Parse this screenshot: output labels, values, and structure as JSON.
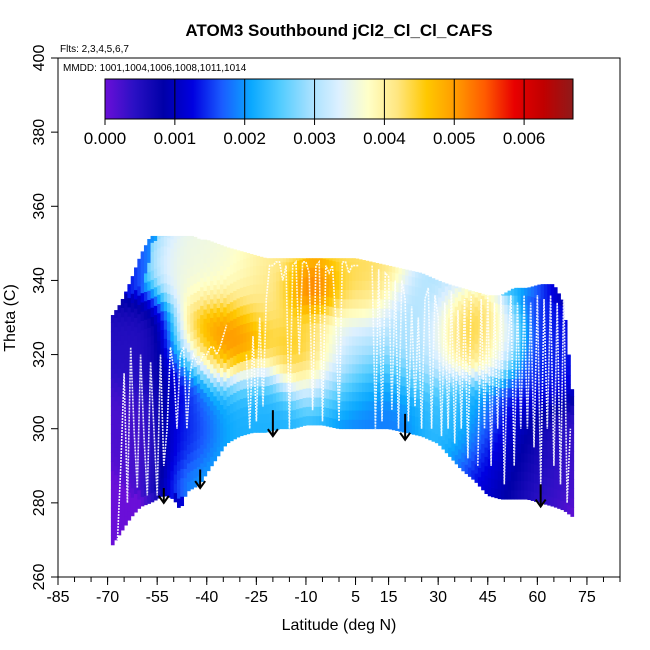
{
  "chart_data": {
    "type": "heatmap",
    "title": "ATOM3 Southbound jCl2_Cl_Cl_CAFS",
    "flights_note": "Flts: 2,3,4,5,6,7",
    "dates_note": "MMDD: 1001,1004,1006,1008,1011,1014",
    "xlabel": "Latitude (deg N)",
    "ylabel": "Theta (C)",
    "xlim": [
      -85,
      85
    ],
    "ylim": [
      260,
      400
    ],
    "x_ticks": [
      -85,
      -70,
      -55,
      -40,
      -25,
      -10,
      5,
      15,
      30,
      45,
      60,
      75
    ],
    "x_tick_labels": [
      "-85",
      "-70",
      "-55",
      "-40",
      "-25",
      "-10",
      "5",
      "15",
      "30",
      "45",
      "60",
      "75"
    ],
    "x_minor_step": 5,
    "y_ticks": [
      260,
      280,
      300,
      320,
      340,
      360,
      380,
      400
    ],
    "y_tick_labels": [
      "260",
      "280",
      "300",
      "320",
      "340",
      "360",
      "380",
      "400"
    ],
    "colorbar": {
      "range": [
        0,
        0.0067
      ],
      "ticks": [
        0.0,
        0.001,
        0.002,
        0.003,
        0.004,
        0.005,
        0.006
      ],
      "tick_labels": [
        "0.000",
        "0.001",
        "0.002",
        "0.003",
        "0.004",
        "0.005",
        "0.006"
      ],
      "colors": [
        "#6a0fd8",
        "#2a10c4",
        "#0000a8",
        "#0000e0",
        "#1a5cff",
        "#0aa8ff",
        "#52ccff",
        "#a4e0ff",
        "#ddf0ff",
        "#ffffc8",
        "#ffe680",
        "#ffc800",
        "#ff9a00",
        "#ff5a00",
        "#e80000",
        "#c00000",
        "#8f1a1a"
      ]
    },
    "boundary": {
      "lat": [
        -69,
        -66,
        -63,
        -60,
        -57,
        -55,
        -53,
        -50,
        -48,
        -46,
        -44,
        -42,
        -40,
        -37,
        -34,
        -30,
        -26,
        -22,
        -18,
        -14,
        -10,
        -5,
        0,
        5,
        10,
        15,
        20,
        25,
        30,
        33,
        37,
        41,
        45,
        49,
        53,
        57,
        61,
        65,
        68,
        71
      ],
      "theta_top": [
        330,
        334,
        340,
        347,
        352,
        352,
        352,
        352,
        352,
        352,
        352,
        351,
        351,
        350,
        349,
        348,
        347,
        346,
        346,
        346,
        346,
        346,
        346,
        346,
        345,
        344,
        343,
        342,
        340,
        339,
        338,
        337,
        336,
        336,
        338,
        338,
        339,
        339,
        334,
        306
      ],
      "theta_bottom": [
        268,
        272,
        276,
        279,
        280,
        281,
        282,
        281,
        278,
        283,
        284,
        285,
        288,
        292,
        296,
        298,
        299,
        299,
        300,
        300,
        301,
        301,
        300,
        300,
        300,
        300,
        299,
        298,
        296,
        293,
        289,
        286,
        282,
        281,
        281,
        281,
        280,
        279,
        278,
        276
      ]
    },
    "value_blobs": [
      {
        "lat": -62,
        "theta": 300,
        "value": 0.0002,
        "radius": 10
      },
      {
        "lat": -57,
        "theta": 320,
        "value": 0.0004,
        "radius": 10
      },
      {
        "lat": -48,
        "theta": 315,
        "value": 0.001,
        "radius": 8
      },
      {
        "lat": -45,
        "theta": 300,
        "value": 0.0012,
        "radius": 8
      },
      {
        "lat": -43,
        "theta": 322,
        "value": 0.0048,
        "radius": 7
      },
      {
        "lat": -35,
        "theta": 325,
        "value": 0.0055,
        "radius": 10
      },
      {
        "lat": -37,
        "theta": 342,
        "value": 0.0036,
        "radius": 12
      },
      {
        "lat": -32,
        "theta": 300,
        "value": 0.0022,
        "radius": 14
      },
      {
        "lat": -20,
        "theta": 340,
        "value": 0.0042,
        "radius": 12
      },
      {
        "lat": -10,
        "theta": 322,
        "value": 0.005,
        "radius": 8
      },
      {
        "lat": -8,
        "theta": 338,
        "value": 0.0058,
        "radius": 7
      },
      {
        "lat": 0,
        "theta": 320,
        "value": 0.0032,
        "radius": 12
      },
      {
        "lat": 5,
        "theta": 340,
        "value": 0.0044,
        "radius": 10
      },
      {
        "lat": 10,
        "theta": 306,
        "value": 0.0018,
        "radius": 12
      },
      {
        "lat": 25,
        "theta": 325,
        "value": 0.003,
        "radius": 12
      },
      {
        "lat": 38,
        "theta": 325,
        "value": 0.0048,
        "radius": 8
      },
      {
        "lat": 36,
        "theta": 302,
        "value": 0.0024,
        "radius": 10
      },
      {
        "lat": 48,
        "theta": 322,
        "value": 0.004,
        "radius": 7
      },
      {
        "lat": 50,
        "theta": 295,
        "value": 0.0012,
        "radius": 12
      },
      {
        "lat": 60,
        "theta": 318,
        "value": 0.0014,
        "radius": 10
      },
      {
        "lat": 63,
        "theta": 290,
        "value": 0.0003,
        "radius": 12
      }
    ],
    "flight_tracks": [
      {
        "lat": [
          -67,
          -66,
          -65,
          -64,
          -63,
          -62,
          -61,
          -60,
          -59,
          -58,
          -57,
          -56,
          -55,
          -54,
          -53,
          -52,
          -51,
          -50,
          -49,
          -48,
          -47,
          -46,
          -45,
          -44,
          -43,
          -42,
          -41,
          -40,
          -39,
          -38,
          -37,
          -36,
          -35,
          -34
        ],
        "theta": [
          270,
          290,
          315,
          280,
          322,
          300,
          284,
          320,
          298,
          282,
          318,
          300,
          282,
          320,
          290,
          300,
          322,
          316,
          300,
          320,
          322,
          300,
          315,
          320,
          318,
          318,
          320,
          320,
          322,
          322,
          320,
          322,
          325,
          328
        ]
      },
      {
        "lat": [
          -28,
          -27,
          -26,
          -25,
          -24,
          -23,
          -22,
          -21,
          -20,
          -19,
          -18,
          -17,
          -16,
          -15,
          -14,
          -13,
          -12,
          -11,
          -10,
          -9,
          -8,
          -7,
          -6,
          -5,
          -4,
          -3,
          -2,
          -1,
          0,
          1,
          2,
          3,
          4,
          5,
          6
        ],
        "theta": [
          320,
          300,
          325,
          302,
          330,
          306,
          335,
          344,
          344,
          345,
          345,
          340,
          344,
          300,
          344,
          345,
          320,
          345,
          345,
          342,
          305,
          344,
          345,
          302,
          344,
          342,
          344,
          330,
          302,
          345,
          345,
          342,
          344,
          344,
          344
        ]
      },
      {
        "lat": [
          10,
          11,
          12,
          13,
          14,
          15,
          16,
          17,
          18,
          19,
          20,
          21,
          22,
          23,
          24,
          25,
          26,
          27,
          28,
          29,
          30,
          31,
          32,
          33,
          34,
          35,
          36,
          37,
          38,
          39,
          40
        ],
        "theta": [
          344,
          300,
          343,
          302,
          342,
          341,
          305,
          340,
          300,
          340,
          335,
          302,
          333,
          306,
          330,
          300,
          335,
          338,
          300,
          336,
          330,
          298,
          334,
          300,
          337,
          296,
          332,
          300,
          335,
          292,
          336
        ]
      },
      {
        "lat": [
          42,
          43,
          44,
          45,
          46,
          47,
          48,
          49,
          50,
          51,
          52,
          53,
          54,
          55,
          56,
          57,
          58,
          59,
          60,
          61,
          62,
          63,
          64,
          65,
          66,
          67,
          68,
          69,
          70
        ],
        "theta": [
          290,
          335,
          300,
          336,
          290,
          334,
          300,
          336,
          285,
          320,
          336,
          290,
          334,
          300,
          336,
          300,
          334,
          295,
          336,
          285,
          335,
          300,
          336,
          290,
          334,
          285,
          338,
          280,
          300
        ]
      }
    ],
    "arrows": [
      {
        "lat": -53,
        "theta_start": 284,
        "theta_end": 280
      },
      {
        "lat": -42,
        "theta_start": 289,
        "theta_end": 284
      },
      {
        "lat": -20,
        "theta_start": 305,
        "theta_end": 298
      },
      {
        "lat": 20,
        "theta_start": 304,
        "theta_end": 297
      },
      {
        "lat": 61,
        "theta_start": 285,
        "theta_end": 279
      }
    ]
  }
}
